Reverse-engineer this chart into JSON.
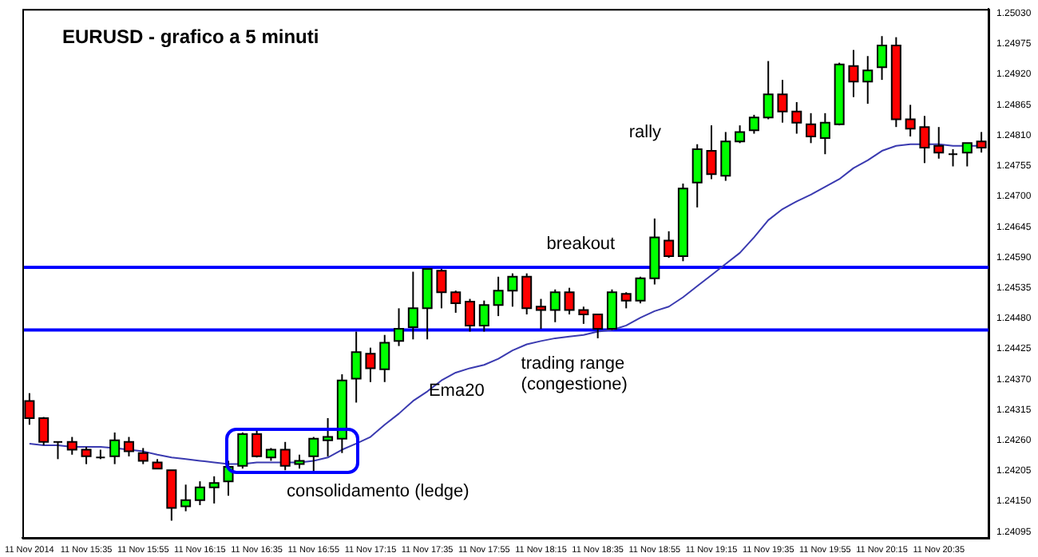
{
  "chart_data": {
    "type": "candlestick",
    "title": "EURUSD - grafico a 5 minuti",
    "annotations": [
      "rally",
      "breakout",
      "trading range (congestione)",
      "consolidamento (ledge)"
    ],
    "categories": [
      "11 Nov 2014",
      null,
      null,
      null,
      "11 Nov 15:35",
      null,
      null,
      null,
      "11 Nov 15:55",
      null,
      null,
      null,
      "11 Nov 16:15",
      null,
      null,
      null,
      "11 Nov 16:35",
      null,
      null,
      null,
      "11 Nov 16:55",
      null,
      null,
      null,
      "11 Nov 17:15",
      null,
      null,
      null,
      "11 Nov 17:35",
      null,
      null,
      null,
      "11 Nov 17:55",
      null,
      null,
      null,
      "11 Nov 18:15",
      null,
      null,
      null,
      "11 Nov 18:35",
      null,
      null,
      null,
      "11 Nov 18:55",
      null,
      null,
      null,
      "11 Nov 19:15",
      null,
      null,
      null,
      "11 Nov 19:35",
      null,
      null,
      null,
      "11 Nov 19:55",
      null,
      null,
      null,
      "11 Nov 20:15",
      null,
      null,
      null,
      "11 Nov 20:35",
      null,
      null,
      null
    ],
    "ohlc": [
      [
        1.24331,
        1.24345,
        1.24288,
        1.243
      ],
      [
        1.243,
        1.24302,
        1.24251,
        1.24257
      ],
      [
        1.24257,
        1.24257,
        1.24226,
        1.24257
      ],
      [
        1.24257,
        1.24266,
        1.24234,
        1.24243
      ],
      [
        1.24243,
        1.24248,
        1.24217,
        1.24231
      ],
      [
        1.24229,
        1.24243,
        1.24226,
        1.24229
      ],
      [
        1.24231,
        1.24274,
        1.24217,
        1.2426
      ],
      [
        1.24257,
        1.24266,
        1.24231,
        1.2424
      ],
      [
        1.24237,
        1.24246,
        1.24217,
        1.24223
      ],
      [
        1.2422,
        1.24226,
        1.24209,
        1.24209
      ],
      [
        1.24206,
        1.24206,
        1.24115,
        1.24138
      ],
      [
        1.24141,
        1.2418,
        1.24132,
        1.24152
      ],
      [
        1.24152,
        1.24186,
        1.24143,
        1.24175
      ],
      [
        1.24175,
        1.24195,
        1.24146,
        1.24183
      ],
      [
        1.24186,
        1.24223,
        1.2416,
        1.24212
      ],
      [
        1.24214,
        1.24274,
        1.24209,
        1.24271
      ],
      [
        1.24271,
        1.2428,
        1.24229,
        1.24231
      ],
      [
        1.24229,
        1.24246,
        1.24223,
        1.24243
      ],
      [
        1.24243,
        1.24257,
        1.24206,
        1.24214
      ],
      [
        1.24217,
        1.24234,
        1.24209,
        1.24223
      ],
      [
        1.24231,
        1.24266,
        1.24203,
        1.24263
      ],
      [
        1.2426,
        1.243,
        1.24231,
        1.24266
      ],
      [
        1.24263,
        1.24379,
        1.24237,
        1.24368
      ],
      [
        1.24371,
        1.24456,
        1.24328,
        1.24419
      ],
      [
        1.24416,
        1.24427,
        1.24365,
        1.2439
      ],
      [
        1.24388,
        1.2445,
        1.24365,
        1.24436
      ],
      [
        1.24439,
        1.24498,
        1.2443,
        1.24461
      ],
      [
        1.24464,
        1.24564,
        1.24442,
        1.24498
      ],
      [
        1.24498,
        1.24569,
        1.24442,
        1.24569
      ],
      [
        1.24566,
        1.24569,
        1.24498,
        1.24527
      ],
      [
        1.24527,
        1.2453,
        1.2449,
        1.24507
      ],
      [
        1.2451,
        1.24515,
        1.24456,
        1.24467
      ],
      [
        1.24467,
        1.24512,
        1.24456,
        1.24504
      ],
      [
        1.24504,
        1.24555,
        1.24484,
        1.2453
      ],
      [
        1.2453,
        1.24561,
        1.24501,
        1.24555
      ],
      [
        1.24555,
        1.24561,
        1.24487,
        1.24498
      ],
      [
        1.24501,
        1.24515,
        1.24461,
        1.24495
      ],
      [
        1.24495,
        1.24532,
        1.24473,
        1.24527
      ],
      [
        1.24527,
        1.24535,
        1.24487,
        1.24495
      ],
      [
        1.24495,
        1.24501,
        1.2447,
        1.24487
      ],
      [
        1.24487,
        1.24487,
        1.24444,
        1.24461
      ],
      [
        1.24461,
        1.24532,
        1.24459,
        1.24527
      ],
      [
        1.24524,
        1.24527,
        1.24498,
        1.24512
      ],
      [
        1.24512,
        1.24555,
        1.24507,
        1.24552
      ],
      [
        1.24552,
        1.2466,
        1.24541,
        1.24626
      ],
      [
        1.2462,
        1.24637,
        1.24589,
        1.24592
      ],
      [
        1.24592,
        1.24723,
        1.24583,
        1.24714
      ],
      [
        1.24725,
        1.24794,
        1.2468,
        1.24785
      ],
      [
        1.24782,
        1.24828,
        1.24731,
        1.2474
      ],
      [
        1.24737,
        1.24816,
        1.24728,
        1.24799
      ],
      [
        1.24799,
        1.24828,
        1.24796,
        1.24816
      ],
      [
        1.24819,
        1.24847,
        1.24813,
        1.24842
      ],
      [
        1.24842,
        1.24944,
        1.24839,
        1.24884
      ],
      [
        1.24884,
        1.2491,
        1.24833,
        1.24853
      ],
      [
        1.24853,
        1.2487,
        1.24813,
        1.24833
      ],
      [
        1.2483,
        1.2485,
        1.24796,
        1.24808
      ],
      [
        1.24805,
        1.2485,
        1.24776,
        1.24833
      ],
      [
        1.2483,
        1.24941,
        1.24828,
        1.24938
      ],
      [
        1.24935,
        1.24964,
        1.24879,
        1.24907
      ],
      [
        1.24907,
        1.24953,
        1.24867,
        1.24927
      ],
      [
        1.24933,
        1.24989,
        1.2491,
        1.24972
      ],
      [
        1.24972,
        1.24987,
        1.24825,
        1.24839
      ],
      [
        1.24839,
        1.24865,
        1.24808,
        1.24822
      ],
      [
        1.24825,
        1.24845,
        1.2476,
        1.24788
      ],
      [
        1.24791,
        1.24825,
        1.24768,
        1.24779
      ],
      [
        1.24776,
        1.24785,
        1.24754,
        1.24776
      ],
      [
        1.24779,
        1.24796,
        1.24754,
        1.24796
      ],
      [
        1.24799,
        1.24816,
        1.24779,
        1.24788
      ]
    ],
    "colors": [
      "#ff0000",
      "#ff0000",
      "#000000",
      "#ff0000",
      "#ff0000",
      "#000000",
      "#00ff00",
      "#ff0000",
      "#ff0000",
      "#ff0000",
      "#ff0000",
      "#00ff00",
      "#00ff00",
      "#00ff00",
      "#00ff00",
      "#00ff00",
      "#ff0000",
      "#00ff00",
      "#ff0000",
      "#00ff00",
      "#00ff00",
      "#00ff00",
      "#00ff00",
      "#00ff00",
      "#ff0000",
      "#00ff00",
      "#00ff00",
      "#00ff00",
      "#00ff00",
      "#ff0000",
      "#ff0000",
      "#ff0000",
      "#00ff00",
      "#00ff00",
      "#00ff00",
      "#ff0000",
      "#ff0000",
      "#00ff00",
      "#ff0000",
      "#ff0000",
      "#ff0000",
      "#00ff00",
      "#ff0000",
      "#00ff00",
      "#00ff00",
      "#ff0000",
      "#00ff00",
      "#00ff00",
      "#ff0000",
      "#00ff00",
      "#00ff00",
      "#00ff00",
      "#00ff00",
      "#ff0000",
      "#ff0000",
      "#ff0000",
      "#00ff00",
      "#00ff00",
      "#ff0000",
      "#00ff00",
      "#00ff00",
      "#ff0000",
      "#ff0000",
      "#ff0000",
      "#ff0000",
      "#000000",
      "#00ff00",
      "#ff0000"
    ],
    "series": [
      {
        "type": "line",
        "name": "Ema20",
        "color": "#3a3ab0",
        "values": [
          1.24254,
          1.24251,
          1.24251,
          1.24248,
          1.24248,
          1.24248,
          1.24246,
          1.24243,
          1.2424,
          1.24234,
          1.24229,
          1.24226,
          1.24223,
          1.2422,
          1.24217,
          1.24217,
          1.2422,
          1.2422,
          1.2422,
          1.2422,
          1.24223,
          1.24229,
          1.24243,
          1.24254,
          1.24266,
          1.24288,
          1.24308,
          1.24331,
          1.24348,
          1.24368,
          1.24382,
          1.2439,
          1.24396,
          1.24407,
          1.24422,
          1.24433,
          1.24439,
          1.24444,
          1.24447,
          1.2445,
          1.24456,
          1.24459,
          1.24467,
          1.24481,
          1.24493,
          1.24501,
          1.24518,
          1.24538,
          1.24558,
          1.24578,
          1.24598,
          1.24626,
          1.24657,
          1.24677,
          1.24691,
          1.24703,
          1.24717,
          1.24731,
          1.24751,
          1.24765,
          1.24782,
          1.24791,
          1.24794,
          1.24794,
          1.24794,
          1.24791,
          1.24791,
          1.24791
        ]
      }
    ],
    "ref_lines": [
      {
        "axis": "y",
        "value": 1.24572,
        "color": "#0000ff"
      },
      {
        "axis": "y",
        "value": 1.24459,
        "color": "#0000ff"
      }
    ],
    "ylim": [
      1.24084,
      1.25038
    ],
    "yticks": [
      {
        "value": 1.2503,
        "label": "1.25030"
      },
      {
        "value": 1.24975,
        "label": "1.24975"
      },
      {
        "value": 1.2492,
        "label": "1.24920"
      },
      {
        "value": 1.24865,
        "label": "1.24865"
      },
      {
        "value": 1.2481,
        "label": "1.24810"
      },
      {
        "value": 1.24755,
        "label": "1.24755"
      },
      {
        "value": 1.247,
        "label": "1.24700"
      },
      {
        "value": 1.24645,
        "label": "1.24645"
      },
      {
        "value": 1.2459,
        "label": "1.24590"
      },
      {
        "value": 1.24535,
        "label": "1.24535"
      },
      {
        "value": 1.2448,
        "label": "1.24480"
      },
      {
        "value": 1.24425,
        "label": "1.24425"
      },
      {
        "value": 1.2437,
        "label": "1.24370"
      },
      {
        "value": 1.24315,
        "label": "1.24315"
      },
      {
        "value": 1.2426,
        "label": "1.24260"
      },
      {
        "value": 1.24205,
        "label": "1.24205"
      },
      {
        "value": 1.2415,
        "label": "1.24150"
      },
      {
        "value": 1.24095,
        "label": "1.24095"
      }
    ],
    "grid": false,
    "legend": false
  }
}
